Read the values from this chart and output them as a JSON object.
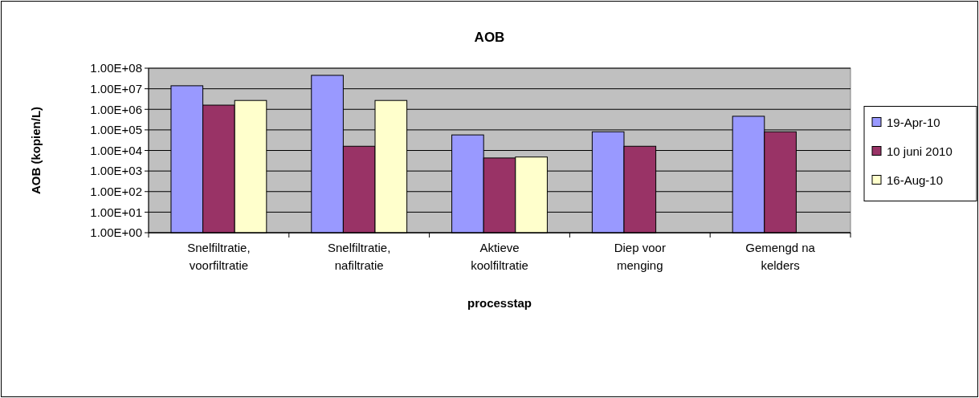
{
  "chart_data": {
    "type": "bar",
    "title": "AOB",
    "xlabel": "processtap",
    "ylabel": "AOB (kopien/L)",
    "categories": [
      "Snelfiltratie, voorfiltratie",
      "Snelfiltratie, nafiltratie",
      "Aktieve koolfiltratie",
      "Diep voor menging",
      "Gemengd na kelders"
    ],
    "series": [
      {
        "name": "19-Apr-10",
        "color": "#9999ff",
        "values": [
          14000000,
          45000000,
          57000,
          81000,
          460000
        ]
      },
      {
        "name": "10 juni 2010",
        "color": "#993366",
        "values": [
          1600000,
          16000,
          4300,
          16000,
          81000
        ]
      },
      {
        "name": "16-Aug-10",
        "color": "#ffffcc",
        "values": [
          2700000,
          2700000,
          4800,
          null,
          null
        ]
      }
    ],
    "log": true,
    "ylim": [
      1,
      100000000
    ],
    "yticks": [
      {
        "value": 1,
        "label": "1.00E+00"
      },
      {
        "value": 10,
        "label": "1.00E+01"
      },
      {
        "value": 100,
        "label": "1.00E+02"
      },
      {
        "value": 1000,
        "label": "1.00E+03"
      },
      {
        "value": 10000,
        "label": "1.00E+04"
      },
      {
        "value": 100000,
        "label": "1.00E+05"
      },
      {
        "value": 1000000,
        "label": "1.00E+06"
      },
      {
        "value": 10000000,
        "label": "1.00E+07"
      },
      {
        "value": 100000000,
        "label": "1.00E+08"
      }
    ],
    "grid": "y",
    "legend": "right"
  }
}
